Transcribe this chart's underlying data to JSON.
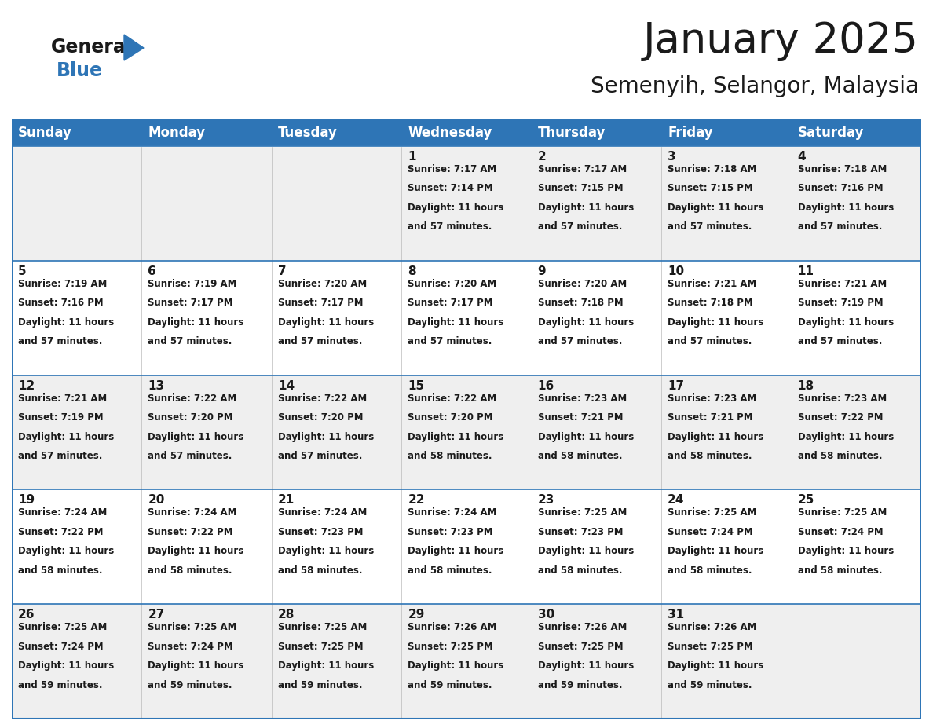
{
  "title": "January 2025",
  "subtitle": "Semenyih, Selangor, Malaysia",
  "header_bg": "#2E75B6",
  "header_text_color": "#FFFFFF",
  "odd_row_bg": "#EFEFEF",
  "even_row_bg": "#FFFFFF",
  "cell_text_color": "#1a1a1a",
  "border_color": "#2E75B6",
  "days_of_week": [
    "Sunday",
    "Monday",
    "Tuesday",
    "Wednesday",
    "Thursday",
    "Friday",
    "Saturday"
  ],
  "calendar_data": [
    [
      {
        "day": "",
        "sunrise": "",
        "sunset": "",
        "daylight": ""
      },
      {
        "day": "",
        "sunrise": "",
        "sunset": "",
        "daylight": ""
      },
      {
        "day": "",
        "sunrise": "",
        "sunset": "",
        "daylight": ""
      },
      {
        "day": "1",
        "sunrise": "7:17 AM",
        "sunset": "7:14 PM",
        "daylight": "11 hours and 57 minutes."
      },
      {
        "day": "2",
        "sunrise": "7:17 AM",
        "sunset": "7:15 PM",
        "daylight": "11 hours and 57 minutes."
      },
      {
        "day": "3",
        "sunrise": "7:18 AM",
        "sunset": "7:15 PM",
        "daylight": "11 hours and 57 minutes."
      },
      {
        "day": "4",
        "sunrise": "7:18 AM",
        "sunset": "7:16 PM",
        "daylight": "11 hours and 57 minutes."
      }
    ],
    [
      {
        "day": "5",
        "sunrise": "7:19 AM",
        "sunset": "7:16 PM",
        "daylight": "11 hours and 57 minutes."
      },
      {
        "day": "6",
        "sunrise": "7:19 AM",
        "sunset": "7:17 PM",
        "daylight": "11 hours and 57 minutes."
      },
      {
        "day": "7",
        "sunrise": "7:20 AM",
        "sunset": "7:17 PM",
        "daylight": "11 hours and 57 minutes."
      },
      {
        "day": "8",
        "sunrise": "7:20 AM",
        "sunset": "7:17 PM",
        "daylight": "11 hours and 57 minutes."
      },
      {
        "day": "9",
        "sunrise": "7:20 AM",
        "sunset": "7:18 PM",
        "daylight": "11 hours and 57 minutes."
      },
      {
        "day": "10",
        "sunrise": "7:21 AM",
        "sunset": "7:18 PM",
        "daylight": "11 hours and 57 minutes."
      },
      {
        "day": "11",
        "sunrise": "7:21 AM",
        "sunset": "7:19 PM",
        "daylight": "11 hours and 57 minutes."
      }
    ],
    [
      {
        "day": "12",
        "sunrise": "7:21 AM",
        "sunset": "7:19 PM",
        "daylight": "11 hours and 57 minutes."
      },
      {
        "day": "13",
        "sunrise": "7:22 AM",
        "sunset": "7:20 PM",
        "daylight": "11 hours and 57 minutes."
      },
      {
        "day": "14",
        "sunrise": "7:22 AM",
        "sunset": "7:20 PM",
        "daylight": "11 hours and 57 minutes."
      },
      {
        "day": "15",
        "sunrise": "7:22 AM",
        "sunset": "7:20 PM",
        "daylight": "11 hours and 58 minutes."
      },
      {
        "day": "16",
        "sunrise": "7:23 AM",
        "sunset": "7:21 PM",
        "daylight": "11 hours and 58 minutes."
      },
      {
        "day": "17",
        "sunrise": "7:23 AM",
        "sunset": "7:21 PM",
        "daylight": "11 hours and 58 minutes."
      },
      {
        "day": "18",
        "sunrise": "7:23 AM",
        "sunset": "7:22 PM",
        "daylight": "11 hours and 58 minutes."
      }
    ],
    [
      {
        "day": "19",
        "sunrise": "7:24 AM",
        "sunset": "7:22 PM",
        "daylight": "11 hours and 58 minutes."
      },
      {
        "day": "20",
        "sunrise": "7:24 AM",
        "sunset": "7:22 PM",
        "daylight": "11 hours and 58 minutes."
      },
      {
        "day": "21",
        "sunrise": "7:24 AM",
        "sunset": "7:23 PM",
        "daylight": "11 hours and 58 minutes."
      },
      {
        "day": "22",
        "sunrise": "7:24 AM",
        "sunset": "7:23 PM",
        "daylight": "11 hours and 58 minutes."
      },
      {
        "day": "23",
        "sunrise": "7:25 AM",
        "sunset": "7:23 PM",
        "daylight": "11 hours and 58 minutes."
      },
      {
        "day": "24",
        "sunrise": "7:25 AM",
        "sunset": "7:24 PM",
        "daylight": "11 hours and 58 minutes."
      },
      {
        "day": "25",
        "sunrise": "7:25 AM",
        "sunset": "7:24 PM",
        "daylight": "11 hours and 58 minutes."
      }
    ],
    [
      {
        "day": "26",
        "sunrise": "7:25 AM",
        "sunset": "7:24 PM",
        "daylight": "11 hours and 59 minutes."
      },
      {
        "day": "27",
        "sunrise": "7:25 AM",
        "sunset": "7:24 PM",
        "daylight": "11 hours and 59 minutes."
      },
      {
        "day": "28",
        "sunrise": "7:25 AM",
        "sunset": "7:25 PM",
        "daylight": "11 hours and 59 minutes."
      },
      {
        "day": "29",
        "sunrise": "7:26 AM",
        "sunset": "7:25 PM",
        "daylight": "11 hours and 59 minutes."
      },
      {
        "day": "30",
        "sunrise": "7:26 AM",
        "sunset": "7:25 PM",
        "daylight": "11 hours and 59 minutes."
      },
      {
        "day": "31",
        "sunrise": "7:26 AM",
        "sunset": "7:25 PM",
        "daylight": "11 hours and 59 minutes."
      },
      {
        "day": "",
        "sunrise": "",
        "sunset": "",
        "daylight": ""
      }
    ]
  ],
  "title_fontsize": 38,
  "subtitle_fontsize": 20,
  "header_fontsize": 12,
  "day_num_fontsize": 11,
  "cell_text_fontsize": 8.5
}
